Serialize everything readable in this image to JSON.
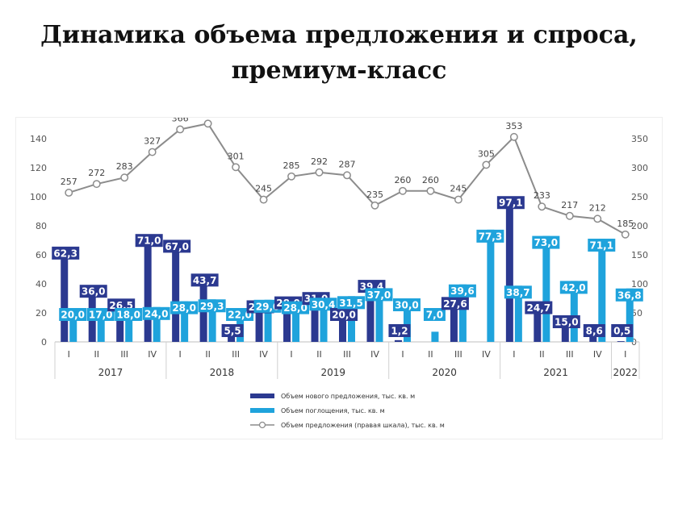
{
  "page": {
    "title_line1": "Динамика объема предложения и спроса,",
    "title_line2": "премиум-класс"
  },
  "chart_data": {
    "type": "bar",
    "categories": [
      "I",
      "II",
      "III",
      "IV",
      "I",
      "II",
      "III",
      "IV",
      "I",
      "II",
      "III",
      "IV",
      "I",
      "II",
      "III",
      "IV",
      "I",
      "II",
      "III",
      "IV",
      "I"
    ],
    "years": [
      {
        "label": "2017",
        "count": 4
      },
      {
        "label": "2018",
        "count": 4
      },
      {
        "label": "2019",
        "count": 4
      },
      {
        "label": "2020",
        "count": 4
      },
      {
        "label": "2021",
        "count": 4
      },
      {
        "label": "2022",
        "count": 1
      }
    ],
    "series": [
      {
        "name": "Объем нового предложения, тыс. кв. м",
        "type": "bar",
        "axis": "left",
        "color": "#2b3990",
        "values": [
          62.3,
          36.0,
          26.5,
          71.0,
          67.0,
          43.7,
          5.5,
          25.3,
          28.0,
          31.0,
          20.0,
          39.4,
          1.2,
          0,
          27.6,
          0,
          97.1,
          24.7,
          15.0,
          8.6,
          0.5
        ],
        "labels": [
          "62,3",
          "36,0",
          "26,5",
          "71,0",
          "67,0",
          "43,7",
          "5,5",
          "25,3",
          "28,0",
          "31,0",
          "20,0",
          "39,4",
          "1,2",
          "",
          "27,6",
          "",
          "97,1",
          "24,7",
          "15,0",
          "8,6",
          "0,5"
        ]
      },
      {
        "name": "Объем поглощения, тыс. кв. м",
        "type": "bar",
        "axis": "left",
        "color": "#1fa3dc",
        "values": [
          20.0,
          17.0,
          18.0,
          24.0,
          28.0,
          29.3,
          22.0,
          29.0,
          28.0,
          30.4,
          31.5,
          37.0,
          30.0,
          7.0,
          39.6,
          77.3,
          38.7,
          73.0,
          42.0,
          71.1,
          36.8
        ],
        "labels": [
          "20,0",
          "17,0",
          "18,0",
          "24,0",
          "28,0",
          "29,3",
          "22,0",
          "29,0",
          "28,0",
          "30,4",
          "31,5",
          "37,0",
          "30,0",
          "7,0",
          "39,6",
          "77,3",
          "38,7",
          "73,0",
          "42,0",
          "71,1",
          "36,8"
        ]
      },
      {
        "name": "Объем предложения  (правая шкала), тыс. кв. м",
        "type": "line",
        "axis": "right",
        "color": "#8c8c8c",
        "values": [
          257,
          272,
          283,
          327,
          366,
          376,
          301,
          245,
          285,
          292,
          287,
          235,
          260,
          260,
          245,
          305,
          353,
          233,
          217,
          212,
          185
        ],
        "labels": [
          "257",
          "272",
          "283",
          "327",
          "366",
          "376",
          "301",
          "245",
          "285",
          "292",
          "287",
          "235",
          "260",
          "260",
          "245",
          "305",
          "353",
          "233",
          "217",
          "212",
          "185"
        ]
      }
    ],
    "y_left": {
      "min": 0,
      "max": 140,
      "ticks": [
        "0",
        "20",
        "40",
        "60",
        "80",
        "100",
        "120",
        "140"
      ]
    },
    "y_right": {
      "min": 0,
      "max": 350,
      "ticks": [
        "0",
        "50",
        "100",
        "150",
        "200",
        "250",
        "300",
        "350"
      ]
    },
    "legend_position": "bottom",
    "grid": false
  }
}
